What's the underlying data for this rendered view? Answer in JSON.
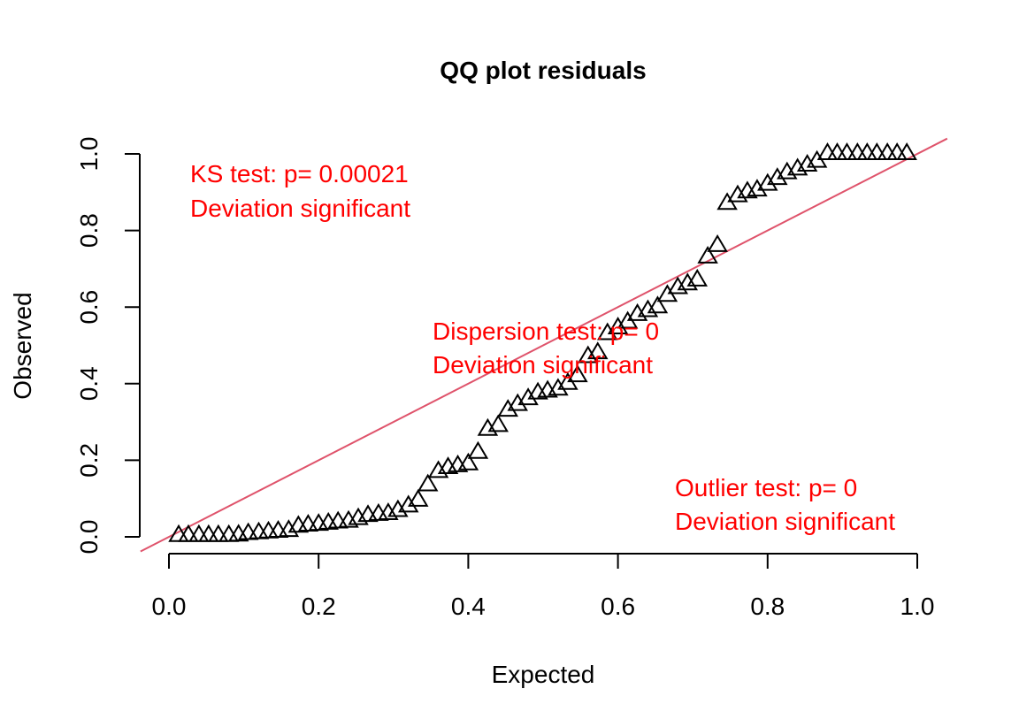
{
  "chart_data": {
    "type": "scatter",
    "title": "QQ plot residuals",
    "xlabel": "Expected",
    "ylabel": "Observed",
    "xlim": [
      0,
      1
    ],
    "ylim": [
      0,
      1
    ],
    "xticks": [
      "0.0",
      "0.2",
      "0.4",
      "0.6",
      "0.8",
      "1.0"
    ],
    "yticks": [
      "0.0",
      "0.2",
      "0.4",
      "0.6",
      "0.8",
      "1.0"
    ],
    "marker": "open-triangle",
    "reference_line": {
      "slope": 1,
      "intercept": 0,
      "color": "#DF536B"
    },
    "annotation_color": "#FF0000",
    "annotations": [
      {
        "line1": "KS test: p= 0.00021",
        "line2": "Deviation  significant"
      },
      {
        "line1": "Dispersion test: p= 0",
        "line2": "Deviation  significant"
      },
      {
        "line1": "Outlier test: p= 0",
        "line2": "Deviation  significant"
      }
    ],
    "points": [
      [
        0.013,
        0.003
      ],
      [
        0.026,
        0.003
      ],
      [
        0.04,
        0.003
      ],
      [
        0.053,
        0.003
      ],
      [
        0.066,
        0.003
      ],
      [
        0.08,
        0.003
      ],
      [
        0.093,
        0.004
      ],
      [
        0.106,
        0.008
      ],
      [
        0.12,
        0.01
      ],
      [
        0.133,
        0.012
      ],
      [
        0.146,
        0.014
      ],
      [
        0.16,
        0.016
      ],
      [
        0.173,
        0.027
      ],
      [
        0.186,
        0.03
      ],
      [
        0.2,
        0.032
      ],
      [
        0.213,
        0.035
      ],
      [
        0.226,
        0.038
      ],
      [
        0.24,
        0.04
      ],
      [
        0.253,
        0.047
      ],
      [
        0.266,
        0.055
      ],
      [
        0.28,
        0.058
      ],
      [
        0.293,
        0.06
      ],
      [
        0.306,
        0.068
      ],
      [
        0.32,
        0.08
      ],
      [
        0.333,
        0.095
      ],
      [
        0.346,
        0.135
      ],
      [
        0.36,
        0.17
      ],
      [
        0.373,
        0.18
      ],
      [
        0.386,
        0.185
      ],
      [
        0.4,
        0.19
      ],
      [
        0.413,
        0.22
      ],
      [
        0.426,
        0.28
      ],
      [
        0.44,
        0.29
      ],
      [
        0.453,
        0.33
      ],
      [
        0.466,
        0.345
      ],
      [
        0.48,
        0.36
      ],
      [
        0.493,
        0.375
      ],
      [
        0.506,
        0.38
      ],
      [
        0.52,
        0.385
      ],
      [
        0.533,
        0.4
      ],
      [
        0.546,
        0.42
      ],
      [
        0.56,
        0.47
      ],
      [
        0.573,
        0.48
      ],
      [
        0.586,
        0.53
      ],
      [
        0.6,
        0.545
      ],
      [
        0.613,
        0.56
      ],
      [
        0.626,
        0.58
      ],
      [
        0.64,
        0.59
      ],
      [
        0.653,
        0.6
      ],
      [
        0.666,
        0.63
      ],
      [
        0.68,
        0.65
      ],
      [
        0.693,
        0.66
      ],
      [
        0.706,
        0.67
      ],
      [
        0.72,
        0.73
      ],
      [
        0.733,
        0.76
      ],
      [
        0.746,
        0.87
      ],
      [
        0.76,
        0.89
      ],
      [
        0.773,
        0.9
      ],
      [
        0.786,
        0.905
      ],
      [
        0.8,
        0.92
      ],
      [
        0.813,
        0.935
      ],
      [
        0.826,
        0.95
      ],
      [
        0.84,
        0.96
      ],
      [
        0.853,
        0.97
      ],
      [
        0.866,
        0.98
      ],
      [
        0.88,
        1.0
      ],
      [
        0.893,
        1.0
      ],
      [
        0.906,
        1.0
      ],
      [
        0.92,
        1.0
      ],
      [
        0.933,
        1.0
      ],
      [
        0.946,
        1.0
      ],
      [
        0.96,
        1.0
      ],
      [
        0.973,
        1.0
      ],
      [
        0.986,
        1.0
      ]
    ]
  }
}
